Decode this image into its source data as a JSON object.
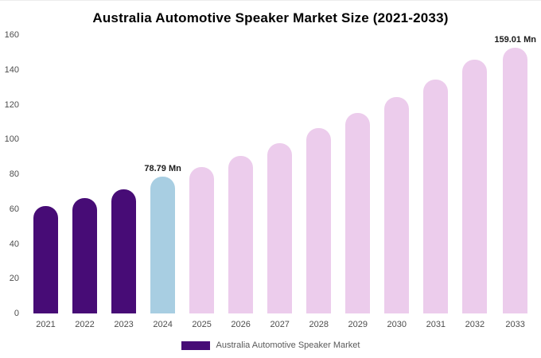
{
  "chart_data": {
    "type": "bar",
    "title": "Australia Automotive Speaker Market Size (2021-2033)",
    "categories": [
      "2021",
      "2022",
      "2023",
      "2024",
      "2025",
      "2026",
      "2027",
      "2028",
      "2029",
      "2030",
      "2031",
      "2032",
      "2033"
    ],
    "values": [
      61.5,
      66.5,
      71.5,
      78.79,
      84,
      90.5,
      98,
      106.5,
      115,
      124.5,
      134.5,
      146,
      159.01
    ],
    "value_labels": [
      "",
      "",
      "",
      "78.79 Mn",
      "",
      "",
      "",
      "",
      "",
      "",
      "",
      "",
      "159.01 Mn"
    ],
    "bar_colors": [
      "#470c76",
      "#470c76",
      "#470c76",
      "#a8cee2",
      "#ecccec",
      "#ecccec",
      "#ecccec",
      "#ecccec",
      "#ecccec",
      "#ecccec",
      "#ecccec",
      "#ecccec",
      "#ecccec"
    ],
    "xlabel": "",
    "ylabel": "",
    "ylim": [
      0,
      160
    ],
    "yticks": [
      0,
      20,
      40,
      60,
      80,
      100,
      120,
      140,
      160
    ],
    "grid": false,
    "legend_position": "bottom"
  },
  "legend": {
    "label": "Australia Automotive Speaker Market",
    "swatch_color": "#470c76"
  }
}
